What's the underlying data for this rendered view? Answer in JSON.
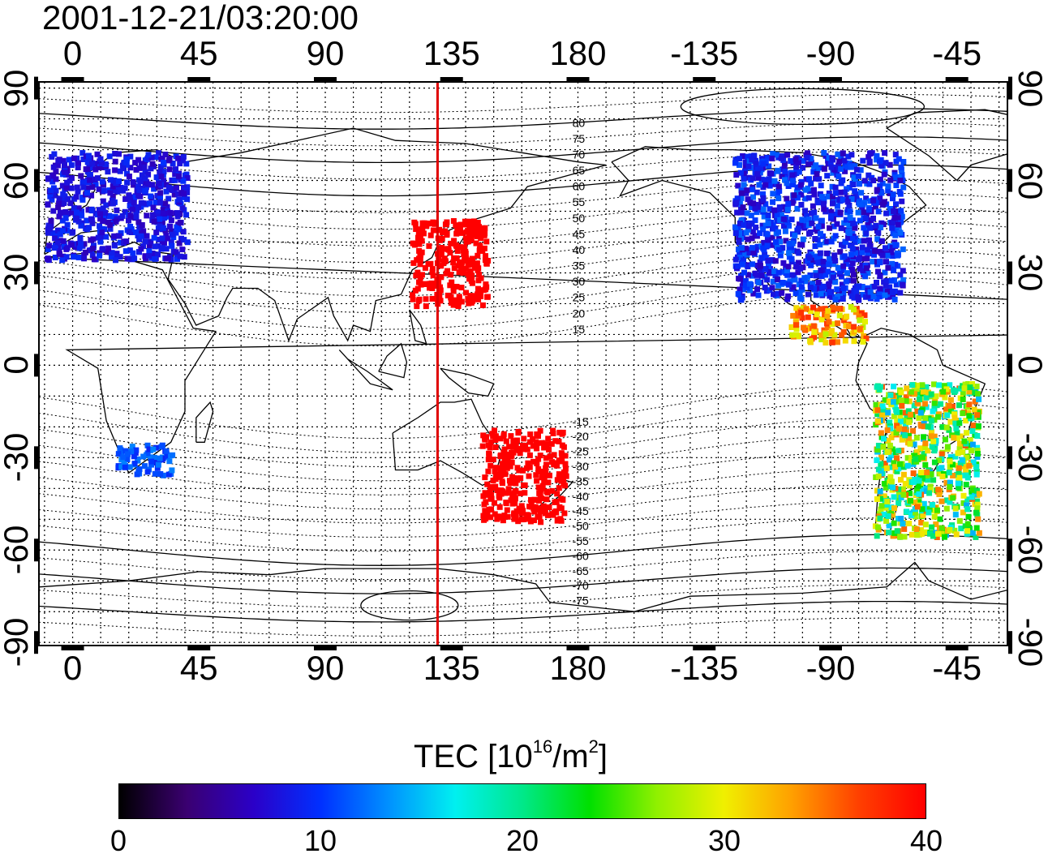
{
  "title": "2001-12-21/03:20:00",
  "lon_ticks": [
    "0",
    "45",
    "90",
    "135",
    "180",
    "-135",
    "-90",
    "-45"
  ],
  "lon_tick_values": [
    0,
    45,
    90,
    135,
    180,
    225,
    270,
    315
  ],
  "lat_ticks": [
    "90",
    "60",
    "30",
    "0",
    "-30",
    "-60",
    "-90"
  ],
  "lat_tick_values": [
    90,
    60,
    30,
    0,
    -30,
    -60,
    -90
  ],
  "map": {
    "lon_range": [
      -12,
      333
    ],
    "lat_range": [
      -91,
      92
    ],
    "grid": "dotted every 10 degrees",
    "marker_line_lon": 130,
    "marker_color": "#e00000"
  },
  "contour_labels": [
    "80",
    "75",
    "70",
    "65",
    "60",
    "55",
    "50",
    "45",
    "40",
    "35",
    "30",
    "25",
    "20",
    "15",
    "-15",
    "-20",
    "-25",
    "-30",
    "-35",
    "-40",
    "-45",
    "-50",
    "-55",
    "-60",
    "-65",
    "-70",
    "-75"
  ],
  "contour_label_lats": [
    80,
    75,
    70,
    65,
    60,
    55,
    50,
    45,
    40,
    35,
    30,
    25,
    20,
    15,
    -15,
    -20,
    -25,
    -30,
    -35,
    -40,
    -45,
    -50,
    -55,
    -60,
    -65,
    -70,
    -75
  ],
  "colorbar": {
    "title_main": "TEC  [10",
    "title_sup1": "16",
    "title_mid": "/m",
    "title_sup2": "2",
    "title_end": "]",
    "min": 0,
    "max": 40,
    "labels": [
      "0",
      "10",
      "20",
      "30",
      "40"
    ],
    "label_values": [
      0,
      10,
      20,
      30,
      40
    ],
    "colors": [
      "#000000",
      "#3a0070",
      "#2b00c8",
      "#0030ff",
      "#0090ff",
      "#00f0f0",
      "#00e88a",
      "#00e000",
      "#90f000",
      "#f0f000",
      "#ffa000",
      "#ff4000",
      "#ff0000"
    ]
  },
  "tec_regions": [
    {
      "name": "europe",
      "lon": [
        -10,
        40
      ],
      "lat": [
        35,
        70
      ],
      "tec": [
        6,
        10
      ]
    },
    {
      "name": "japan",
      "lon": [
        120,
        147
      ],
      "lat": [
        20,
        48
      ],
      "tec": [
        40,
        40
      ]
    },
    {
      "name": "north-america",
      "lon": [
        -125,
        -65
      ],
      "lat": [
        22,
        70
      ],
      "tec": [
        6,
        12
      ]
    },
    {
      "name": "central-america",
      "lon": [
        -105,
        -78
      ],
      "lat": [
        8,
        20
      ],
      "tec": [
        28,
        38
      ]
    },
    {
      "name": "australia-east",
      "lon": [
        145,
        175
      ],
      "lat": [
        -50,
        -20
      ],
      "tec": [
        40,
        40
      ]
    },
    {
      "name": "south-america",
      "lon": [
        -75,
        -38
      ],
      "lat": [
        -55,
        -5
      ],
      "tec": [
        14,
        36
      ]
    },
    {
      "name": "south-africa",
      "lon": [
        15,
        35
      ],
      "lat": [
        -35,
        -25
      ],
      "tec": [
        9,
        13
      ]
    }
  ]
}
